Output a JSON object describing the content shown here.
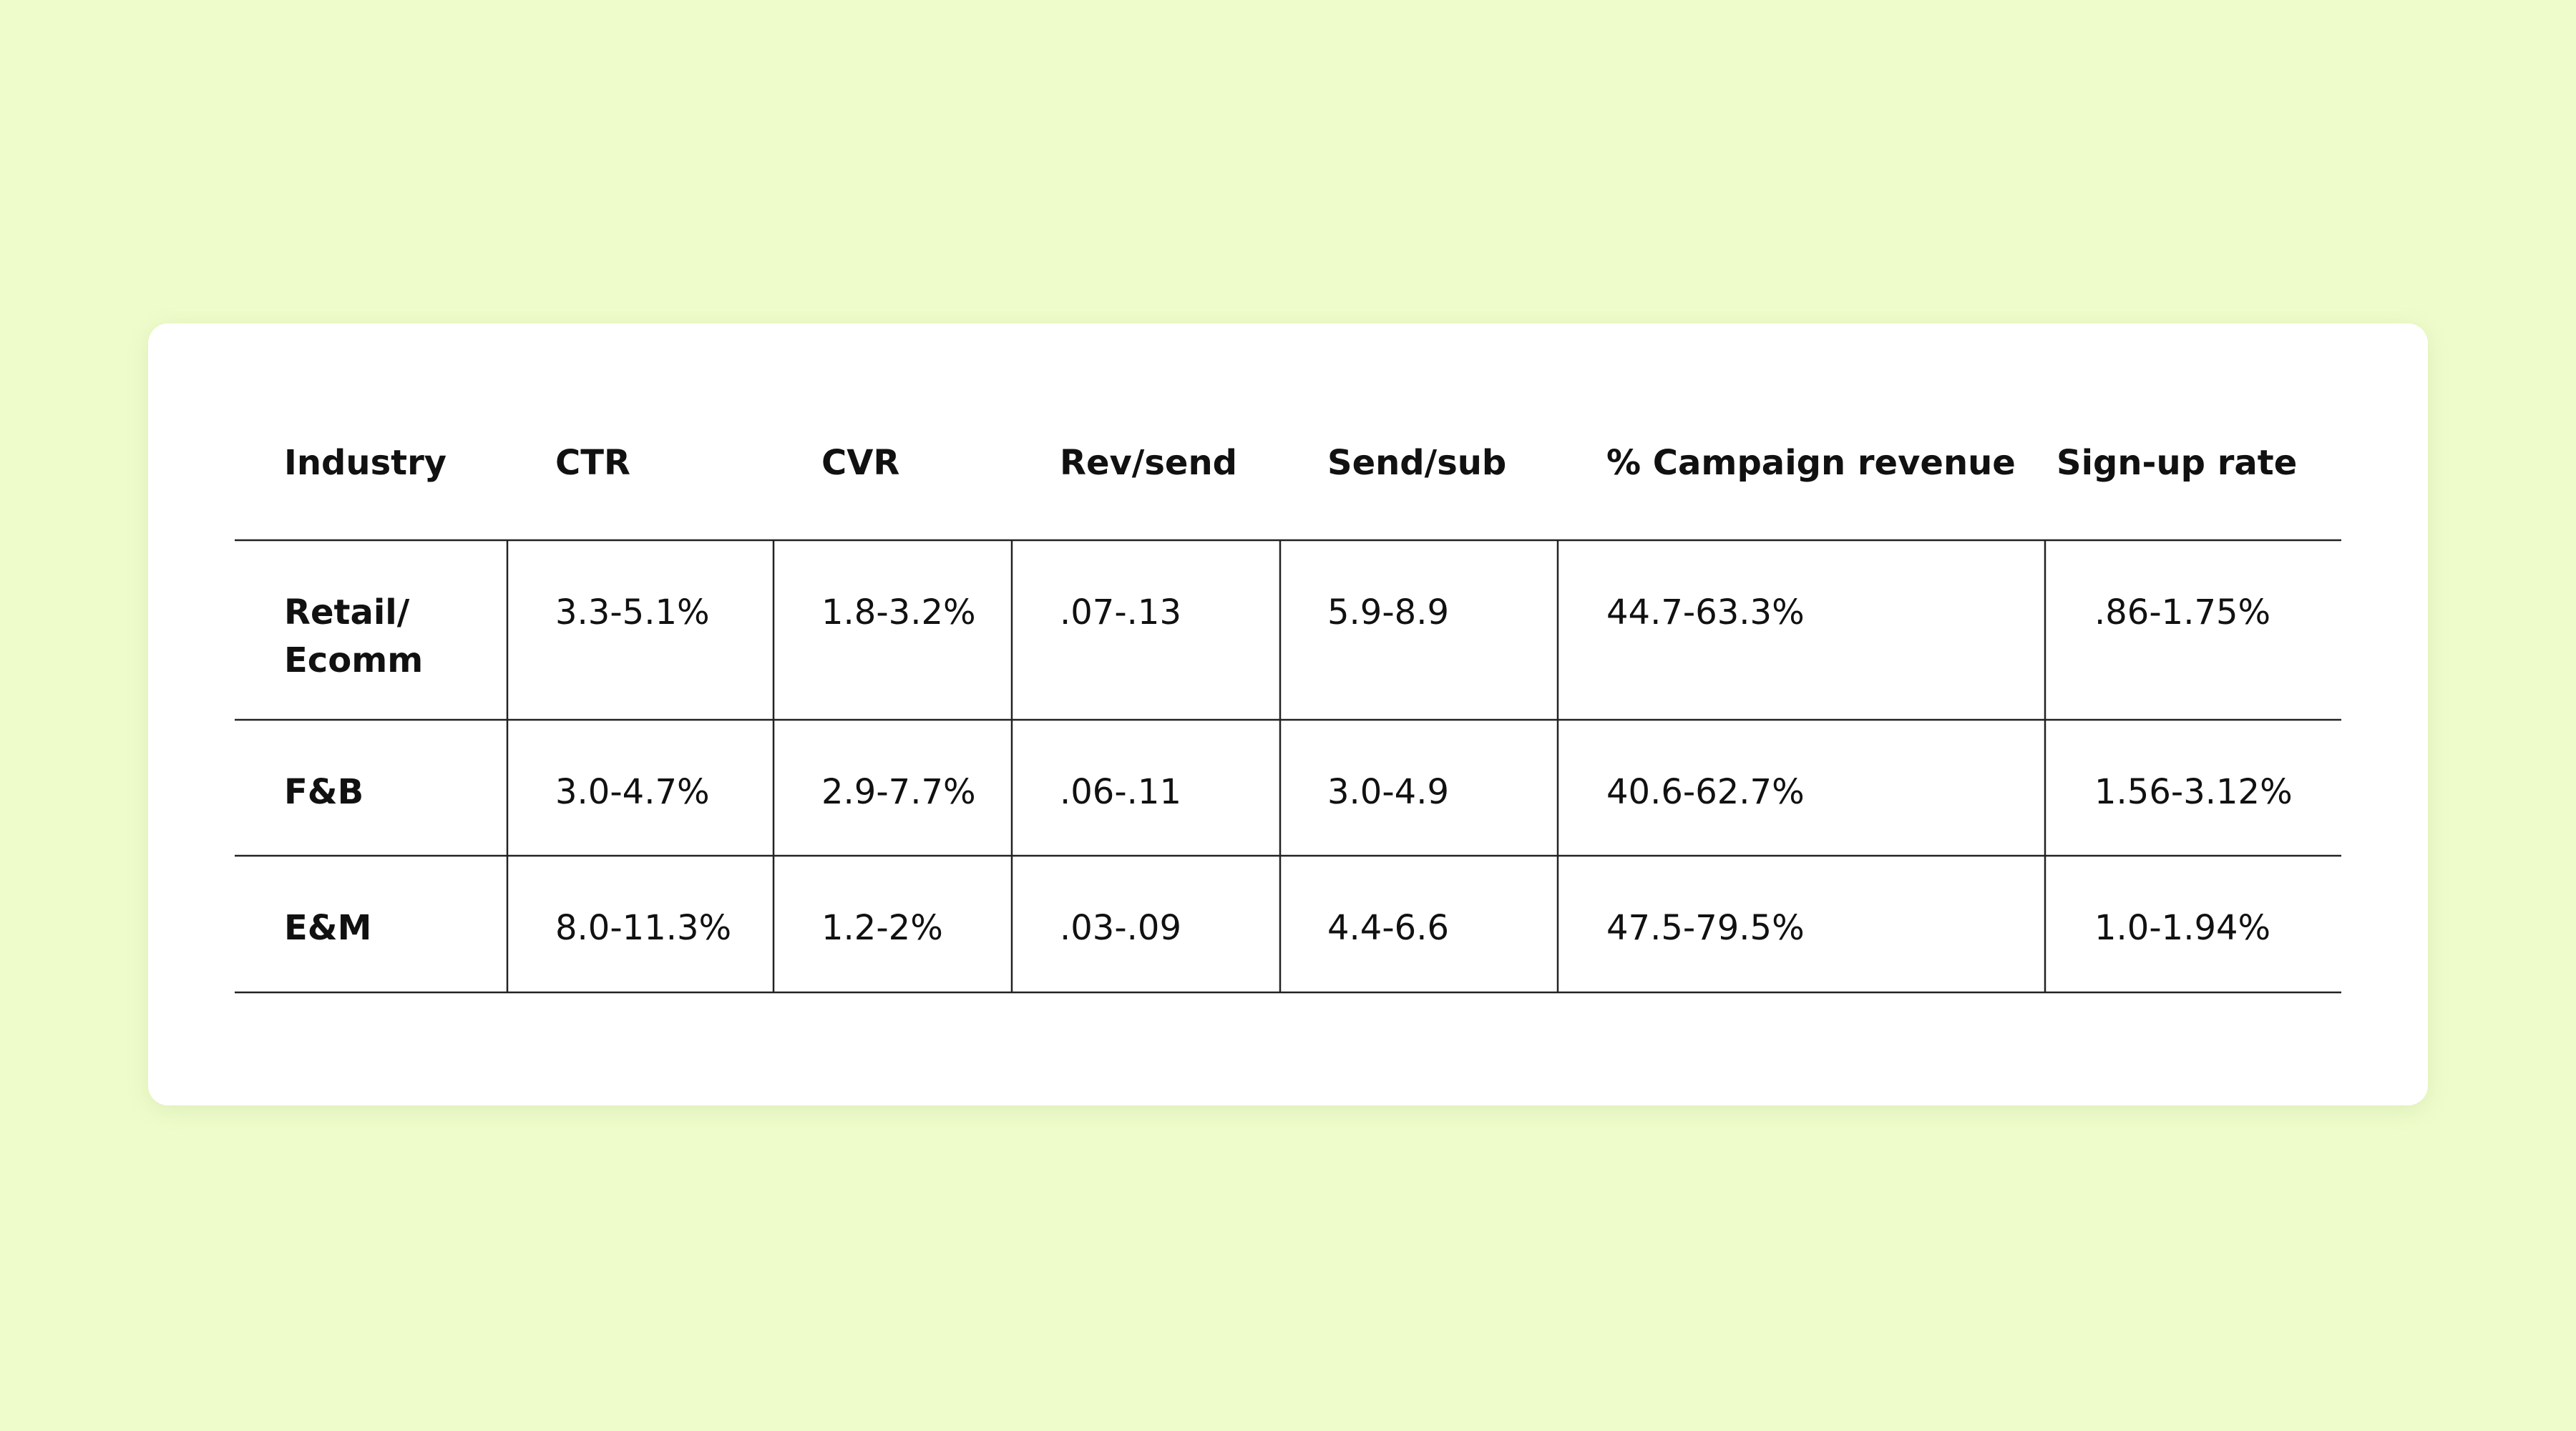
{
  "table": {
    "columns": [
      "Industry",
      "CTR",
      "CVR",
      "Rev/send",
      "Send/sub",
      "% Campaign revenue",
      "Sign-up rate"
    ],
    "rows": [
      [
        "Retail/ Ecomm",
        "3.3-5.1%",
        "1.8-3.2%",
        ".07-.13",
        "5.9-8.9",
        "44.7-63.3%",
        ".86-1.75%"
      ],
      [
        "F&B",
        "3.0-4.7%",
        "2.9-7.7%",
        ".06-.11",
        "3.0-4.9",
        "40.6-62.7%",
        "1.56-3.12%"
      ],
      [
        "E&M",
        "8.0-11.3%",
        "1.2-2%",
        ".03-.09",
        "4.4-6.6",
        "47.5-79.5%",
        "1.0-1.94%"
      ]
    ]
  }
}
